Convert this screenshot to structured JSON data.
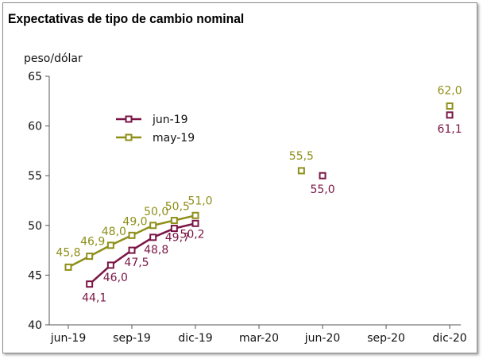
{
  "chart_data": {
    "type": "line",
    "title": "Expectativas de tipo de cambio nominal",
    "ylabel": "peso/dólar",
    "xlabel": "",
    "ylim": [
      40,
      65
    ],
    "yticks": [
      40,
      45,
      50,
      55,
      60,
      65
    ],
    "xticks": [
      "jun-19",
      "sep-19",
      "dic-19",
      "mar-20",
      "jun-20",
      "sep-20",
      "dic-20"
    ],
    "grid": false,
    "legend_position": "top-left",
    "series": [
      {
        "name": "jun-19",
        "color": "#7a1545",
        "marker": "square-hollow",
        "points": [
          {
            "x": "jul-19",
            "y": 44.1,
            "label": "44,1"
          },
          {
            "x": "ago-19",
            "y": 46.0,
            "label": "46,0"
          },
          {
            "x": "sep-19",
            "y": 47.5,
            "label": "47,5"
          },
          {
            "x": "oct-19",
            "y": 48.8,
            "label": "48,8"
          },
          {
            "x": "nov-19",
            "y": 49.7,
            "label": "49,7"
          },
          {
            "x": "dic-19",
            "y": 50.2,
            "label": "50,2"
          },
          {
            "x": "jun-20",
            "y": 55.0,
            "label": "55,0"
          },
          {
            "x": "dic-20",
            "y": 61.1,
            "label": "61,1"
          }
        ]
      },
      {
        "name": "may-19",
        "color": "#8f8f1a",
        "marker": "square-hollow",
        "points": [
          {
            "x": "jun-19",
            "y": 45.8,
            "label": "45,8"
          },
          {
            "x": "jul-19",
            "y": 46.9,
            "label": "46,9"
          },
          {
            "x": "ago-19",
            "y": 48.0,
            "label": "48,0"
          },
          {
            "x": "sep-19",
            "y": 49.0,
            "label": "49,0"
          },
          {
            "x": "oct-19",
            "y": 50.0,
            "label": "50,0"
          },
          {
            "x": "nov-19",
            "y": 50.5,
            "label": "50,5"
          },
          {
            "x": "dic-19",
            "y": 51.0,
            "label": "51,0"
          },
          {
            "x": "may-20",
            "y": 55.5,
            "label": "55,5"
          },
          {
            "x": "dic-20",
            "y": 62.0,
            "label": "62,0"
          }
        ]
      }
    ]
  }
}
